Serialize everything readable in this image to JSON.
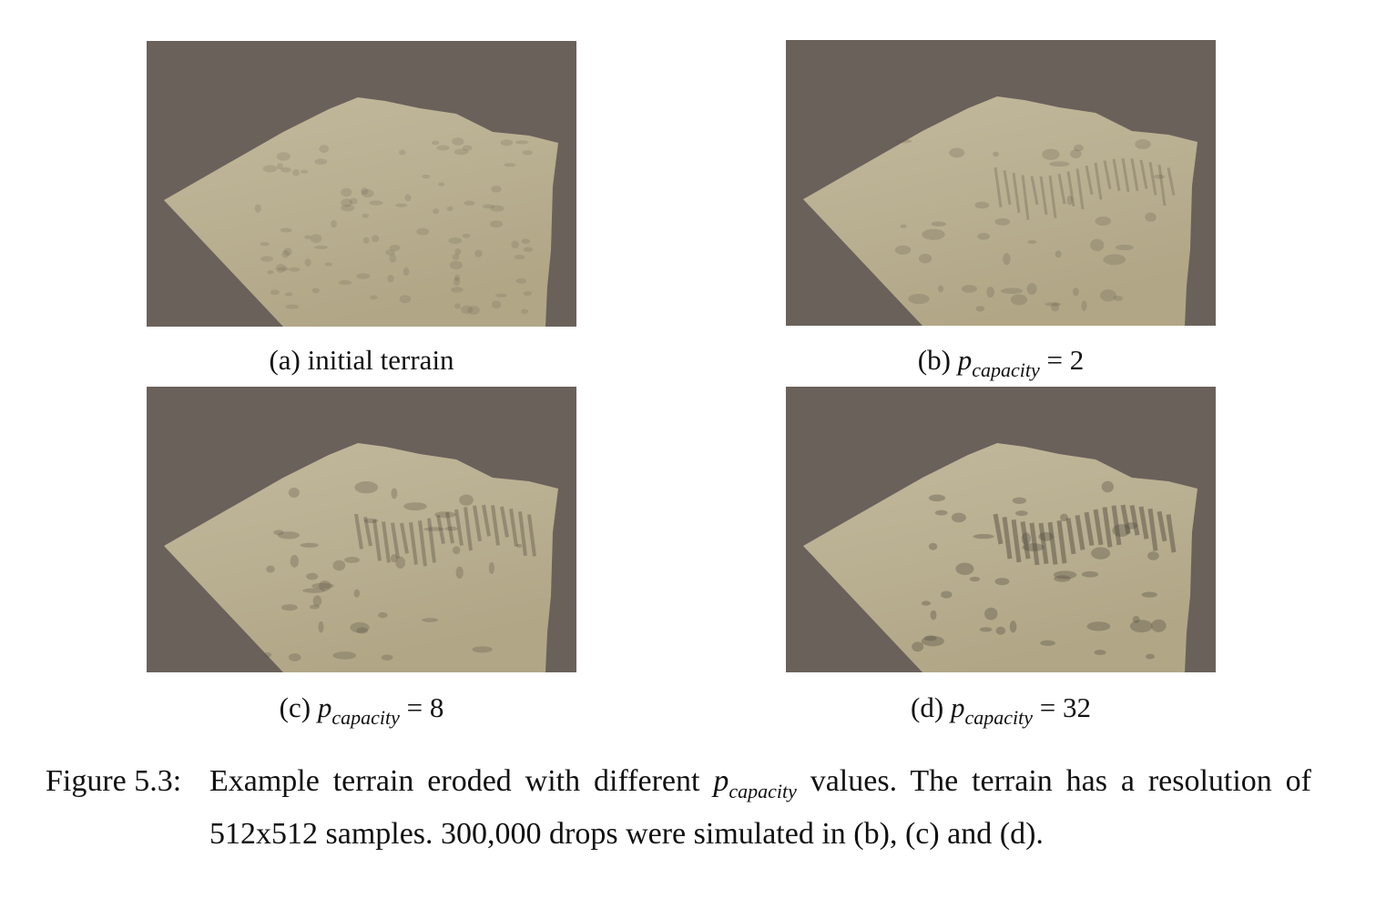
{
  "figure": {
    "panels": [
      {
        "tag": "(a)",
        "text": "initial terrain"
      },
      {
        "tag": "(b)",
        "math_base": "p",
        "math_sub": "capacity",
        "math_rest": "= 2"
      },
      {
        "tag": "(c)",
        "math_base": "p",
        "math_sub": "capacity",
        "math_rest": "= 8"
      },
      {
        "tag": "(d)",
        "math_base": "p",
        "math_sub": "capacity",
        "math_rest": "= 32"
      }
    ],
    "caption": {
      "label": "Figure 5.3:",
      "text_before": "Example terrain eroded with different",
      "math_base": "p",
      "math_sub": "capacity",
      "text_after": "values. The terrain has a resolution of 512x512 samples. 300,000 drops were simulated in (b), (c) and (d)."
    }
  }
}
